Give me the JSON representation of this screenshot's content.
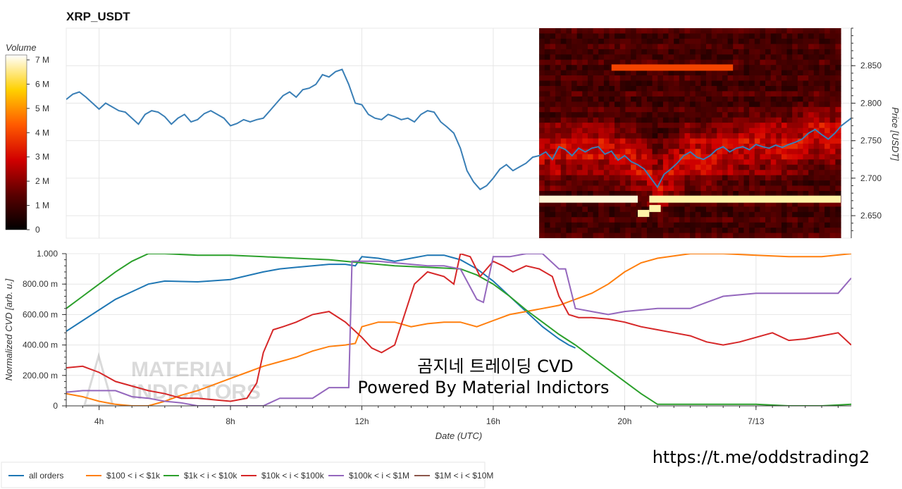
{
  "colors": {
    "all_orders": "#1f77b4",
    "s100_1k": "#ff7f0e",
    "s1k_10k": "#2ca02c",
    "s10k_100k": "#d62728",
    "s100k_1M": "#9467bd",
    "s1M_10M": "#8c564b",
    "price_line": "#3a7fb6"
  },
  "watermark": {
    "line1": "MATERIAL",
    "line2": "INDICATORS"
  },
  "overlay": {
    "line1": "곰지네 트레이딩 CVD",
    "line2": "Powered By Material Indictors",
    "url": "https://t.me/oddstrading2"
  },
  "chart_data": [
    {
      "type": "line",
      "title": "XRP_USDT",
      "ylabel": "Price [USDT]",
      "ylim": [
        2.62,
        2.9
      ],
      "yticks": [
        "2.650",
        "2.700",
        "2.750",
        "2.800",
        "2.850"
      ],
      "xlim": [
        3.0,
        26.9
      ],
      "x_ticks_hours": [
        4,
        8,
        12,
        16,
        20,
        24
      ],
      "x_tick_labels": [
        "4h",
        "8h",
        "12h",
        "16h",
        "20h",
        "7/13"
      ],
      "heatmap": {
        "colorbar_title": "Volume",
        "colorbar_ticks": [
          "0",
          "1 M",
          "2 M",
          "3 M",
          "4 M",
          "5 M",
          "6 M",
          "7 M"
        ],
        "x_start_hour": 17.4,
        "x_end_hour": 27.6,
        "rows": [
          {
            "price": 2.672,
            "level": 0.97
          },
          {
            "price": 2.653,
            "level": 0.95
          },
          {
            "price": 2.847,
            "level": 0.55
          }
        ]
      },
      "series": [
        {
          "name": "price",
          "x": [
            3.0,
            3.2,
            3.4,
            3.6,
            3.8,
            4.0,
            4.2,
            4.4,
            4.6,
            4.8,
            5.0,
            5.2,
            5.4,
            5.6,
            5.8,
            6.0,
            6.2,
            6.4,
            6.6,
            6.8,
            7.0,
            7.2,
            7.4,
            7.6,
            7.8,
            8.0,
            8.2,
            8.4,
            8.6,
            8.8,
            9.0,
            9.2,
            9.4,
            9.6,
            9.8,
            10.0,
            10.2,
            10.4,
            10.6,
            10.8,
            11.0,
            11.2,
            11.4,
            11.6,
            11.8,
            12.0,
            12.2,
            12.4,
            12.6,
            12.8,
            13.0,
            13.2,
            13.4,
            13.6,
            13.8,
            14.0,
            14.2,
            14.4,
            14.6,
            14.8,
            15.0,
            15.2,
            15.4,
            15.6,
            15.8,
            16.0,
            16.2,
            16.4,
            16.6,
            16.8,
            17.0,
            17.2,
            17.4,
            17.6,
            17.8,
            18.0,
            18.2,
            18.4,
            18.6,
            18.8,
            19.0,
            19.2,
            19.4,
            19.6,
            19.8,
            20.0,
            20.2,
            20.4,
            20.6,
            20.8,
            21.0,
            21.2,
            21.4,
            21.6,
            21.8,
            22.0,
            22.2,
            22.4,
            22.6,
            22.8,
            23.0,
            23.2,
            23.4,
            23.6,
            23.8,
            24.0,
            24.2,
            24.4,
            24.6,
            24.8,
            25.0,
            25.2,
            25.4,
            25.6,
            25.8,
            26.0,
            26.2,
            26.4,
            26.6,
            26.9
          ],
          "values": [
            2.805,
            2.812,
            2.815,
            2.808,
            2.8,
            2.792,
            2.8,
            2.795,
            2.79,
            2.788,
            2.78,
            2.772,
            2.785,
            2.79,
            2.788,
            2.782,
            2.772,
            2.78,
            2.785,
            2.775,
            2.778,
            2.786,
            2.79,
            2.785,
            2.78,
            2.77,
            2.773,
            2.778,
            2.775,
            2.778,
            2.78,
            2.79,
            2.8,
            2.81,
            2.815,
            2.808,
            2.818,
            2.82,
            2.825,
            2.838,
            2.835,
            2.842,
            2.845,
            2.825,
            2.8,
            2.798,
            2.785,
            2.78,
            2.778,
            2.785,
            2.782,
            2.778,
            2.78,
            2.775,
            2.785,
            2.79,
            2.788,
            2.775,
            2.768,
            2.76,
            2.74,
            2.71,
            2.695,
            2.685,
            2.69,
            2.7,
            2.712,
            2.718,
            2.71,
            2.715,
            2.72,
            2.728,
            2.73,
            2.735,
            2.725,
            2.742,
            2.738,
            2.73,
            2.74,
            2.735,
            2.74,
            2.742,
            2.732,
            2.736,
            2.724,
            2.73,
            2.722,
            2.718,
            2.712,
            2.7,
            2.688,
            2.705,
            2.712,
            2.72,
            2.73,
            2.735,
            2.728,
            2.725,
            2.73,
            2.738,
            2.742,
            2.735,
            2.74,
            2.742,
            2.738,
            2.745,
            2.742,
            2.74,
            2.744,
            2.741,
            2.745,
            2.748,
            2.752,
            2.76,
            2.765,
            2.758,
            2.752,
            2.76,
            2.77,
            2.78
          ]
        }
      ]
    },
    {
      "type": "line",
      "ylabel": "Normalized CVD [arb. u.]",
      "xlabel": "Date (UTC)",
      "ylim": [
        0,
        1
      ],
      "yticks": [
        "0",
        "200.00 m",
        "400.00 m",
        "600.00 m",
        "800.00 m",
        "1.000"
      ],
      "xlim": [
        3.0,
        26.9
      ],
      "x_ticks_hours": [
        4,
        8,
        12,
        16,
        20,
        24
      ],
      "x_tick_labels": [
        "4h",
        "8h",
        "12h",
        "16h",
        "20h",
        "7/13"
      ],
      "legend_position": "bottom",
      "series": [
        {
          "name": "all orders",
          "x": [
            3.0,
            3.5,
            4.0,
            4.5,
            5.0,
            5.5,
            6.0,
            7.0,
            8.0,
            9.0,
            9.5,
            10.0,
            10.5,
            11.0,
            11.5,
            11.8,
            12.0,
            12.5,
            13.0,
            13.5,
            14.0,
            14.5,
            15.0,
            15.5,
            16.0,
            16.5,
            17.0,
            17.5,
            18.0,
            18.3,
            18.5
          ],
          "values": [
            0.49,
            0.56,
            0.63,
            0.7,
            0.75,
            0.8,
            0.82,
            0.815,
            0.83,
            0.88,
            0.9,
            0.91,
            0.92,
            0.93,
            0.93,
            0.92,
            0.98,
            0.97,
            0.95,
            0.97,
            0.99,
            0.99,
            0.96,
            0.9,
            0.82,
            0.72,
            0.62,
            0.52,
            0.44,
            0.4,
            0.38
          ]
        },
        {
          "name": "$100 < i < $1k",
          "x": [
            3.0,
            3.5,
            4.0,
            4.5,
            5.0,
            5.5,
            6.0,
            6.5,
            7.0,
            7.5,
            8.0,
            8.5,
            9.0,
            9.5,
            10.0,
            10.5,
            11.0,
            11.5,
            11.8,
            12.0,
            12.5,
            13.0,
            13.5,
            14.0,
            14.5,
            15.0,
            15.5,
            16.0,
            16.5,
            17.0,
            17.5,
            18.0,
            18.5,
            19.0,
            19.5,
            20.0,
            20.5,
            21.0,
            22.0,
            23.0,
            24.0,
            25.0,
            26.0,
            26.9
          ],
          "values": [
            0.08,
            0.06,
            0.03,
            0.01,
            0.0,
            0.0,
            0.03,
            0.07,
            0.1,
            0.14,
            0.18,
            0.22,
            0.26,
            0.29,
            0.32,
            0.36,
            0.39,
            0.4,
            0.41,
            0.52,
            0.55,
            0.55,
            0.52,
            0.54,
            0.55,
            0.55,
            0.52,
            0.56,
            0.6,
            0.62,
            0.64,
            0.66,
            0.7,
            0.74,
            0.8,
            0.88,
            0.94,
            0.97,
            1.0,
            1.0,
            0.99,
            0.98,
            0.98,
            1.0
          ]
        },
        {
          "name": "$1k < i < $10k",
          "x": [
            3.0,
            3.5,
            4.0,
            4.5,
            5.0,
            5.5,
            6.0,
            7.0,
            8.0,
            9.0,
            10.0,
            11.0,
            12.0,
            13.0,
            14.0,
            15.0,
            15.5,
            16.0,
            16.5,
            17.0,
            17.5,
            18.0,
            18.5,
            19.0,
            19.5,
            20.0,
            20.5,
            21.0,
            21.5,
            22.0,
            23.0,
            24.0,
            25.0,
            26.0,
            26.9
          ],
          "values": [
            0.64,
            0.72,
            0.8,
            0.88,
            0.95,
            1.0,
            1.0,
            0.99,
            0.99,
            0.98,
            0.97,
            0.96,
            0.94,
            0.92,
            0.91,
            0.9,
            0.86,
            0.8,
            0.72,
            0.63,
            0.55,
            0.47,
            0.4,
            0.32,
            0.24,
            0.16,
            0.08,
            0.01,
            0.01,
            0.01,
            0.01,
            0.01,
            0.0,
            0.0,
            0.01
          ]
        },
        {
          "name": "$10k < i < $100k",
          "x": [
            3.0,
            3.5,
            4.0,
            4.5,
            5.0,
            5.5,
            6.0,
            6.5,
            7.0,
            7.5,
            8.0,
            8.5,
            8.8,
            9.0,
            9.3,
            9.6,
            10.0,
            10.5,
            11.0,
            11.5,
            12.0,
            12.3,
            12.6,
            13.0,
            13.3,
            13.6,
            14.0,
            14.5,
            14.8,
            15.0,
            15.3,
            15.6,
            16.0,
            16.3,
            16.6,
            17.0,
            17.4,
            17.8,
            18.0,
            18.3,
            18.6,
            19.0,
            19.5,
            20.0,
            20.5,
            21.0,
            21.5,
            22.0,
            22.5,
            23.0,
            23.5,
            24.0,
            24.5,
            25.0,
            25.5,
            26.0,
            26.5,
            26.9
          ],
          "values": [
            0.25,
            0.26,
            0.22,
            0.16,
            0.13,
            0.1,
            0.08,
            0.05,
            0.05,
            0.04,
            0.03,
            0.05,
            0.15,
            0.35,
            0.5,
            0.52,
            0.55,
            0.6,
            0.62,
            0.55,
            0.45,
            0.38,
            0.35,
            0.4,
            0.6,
            0.8,
            0.88,
            0.85,
            0.8,
            1.0,
            0.98,
            0.85,
            0.95,
            0.92,
            0.88,
            0.92,
            0.9,
            0.85,
            0.72,
            0.6,
            0.58,
            0.58,
            0.57,
            0.55,
            0.52,
            0.5,
            0.48,
            0.46,
            0.42,
            0.4,
            0.42,
            0.45,
            0.48,
            0.43,
            0.44,
            0.46,
            0.48,
            0.4
          ]
        },
        {
          "name": "$100k < i < $1M",
          "x": [
            3.0,
            3.5,
            4.0,
            4.5,
            5.0,
            5.5,
            6.0,
            6.5,
            7.0,
            7.5,
            8.0,
            8.5,
            9.0,
            9.5,
            10.0,
            10.5,
            11.0,
            11.5,
            11.6,
            11.7,
            12.0,
            12.5,
            13.0,
            13.5,
            14.0,
            14.5,
            15.0,
            15.5,
            15.7,
            16.0,
            16.5,
            17.0,
            17.5,
            18.0,
            18.2,
            18.5,
            19.0,
            19.5,
            20.0,
            21.0,
            22.0,
            22.5,
            23.0,
            24.0,
            25.0,
            26.0,
            26.5,
            26.9
          ],
          "values": [
            0.09,
            0.1,
            0.1,
            0.1,
            0.06,
            0.05,
            0.03,
            0.02,
            0.0,
            0.0,
            0.0,
            0.0,
            0.0,
            0.05,
            0.05,
            0.05,
            0.12,
            0.12,
            0.12,
            0.95,
            0.95,
            0.95,
            0.94,
            0.93,
            0.92,
            0.92,
            0.9,
            0.7,
            0.68,
            0.98,
            0.98,
            1.0,
            1.0,
            0.9,
            0.9,
            0.64,
            0.62,
            0.6,
            0.62,
            0.64,
            0.64,
            0.68,
            0.72,
            0.74,
            0.74,
            0.74,
            0.74,
            0.84
          ]
        },
        {
          "name": "$1M < i < $10M",
          "x": [],
          "values": []
        }
      ]
    }
  ]
}
